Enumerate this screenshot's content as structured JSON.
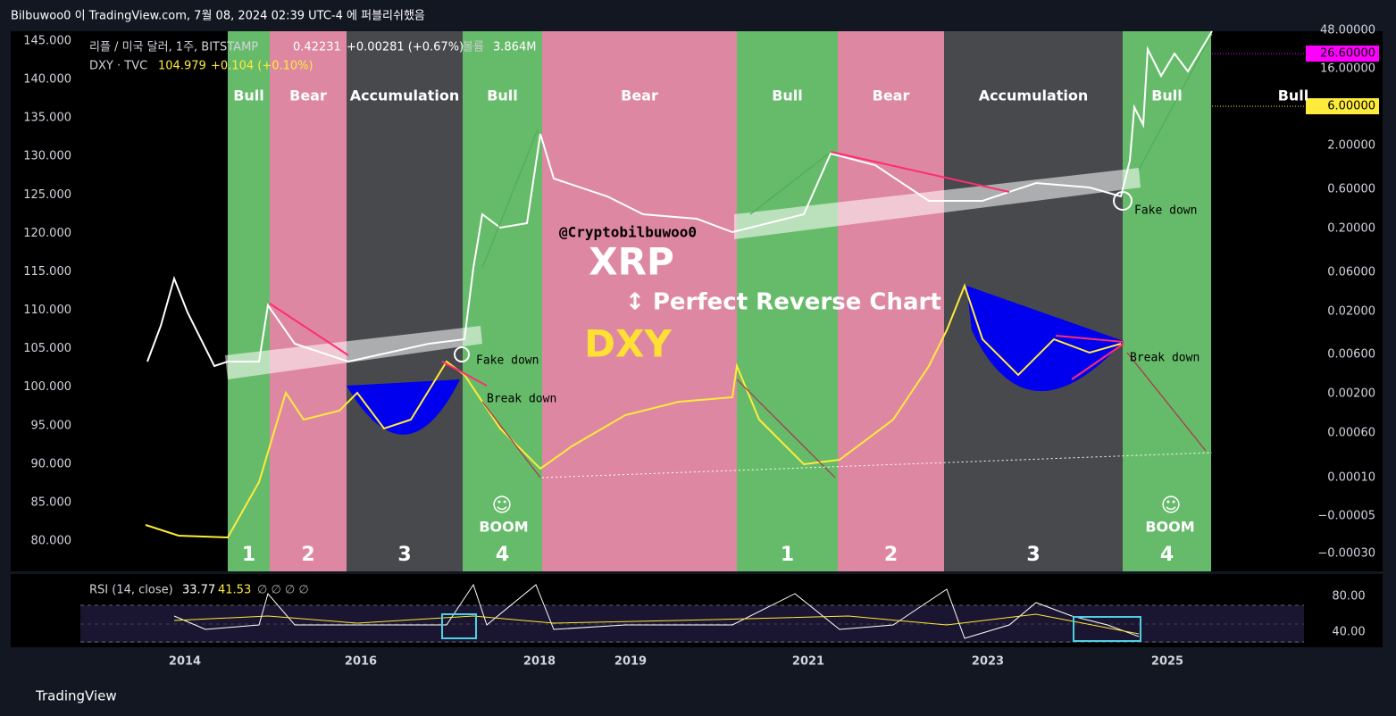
{
  "header": {
    "title": "Bilbuwoo0 이 TradingView.com, 7월 08, 2024 02:39 UTC-4 에 퍼블리쉬했음"
  },
  "legend": {
    "main": {
      "symbol": "리플 / 미국 달러, 1주, BITSTAMP",
      "price": "0.42231",
      "change": "+0.00281 (+0.67%)",
      "volume_label": "볼륨",
      "volume": "3.864M"
    },
    "dxy": {
      "symbol": "DXY · TVC",
      "price": "104.979",
      "change": "+0.104 (+0.10%)"
    }
  },
  "phases": [
    {
      "label": "Bull",
      "number": "1"
    },
    {
      "label": "Bear",
      "number": "2"
    },
    {
      "label": "Accumulation",
      "number": "3"
    },
    {
      "label": "Bull",
      "number": "4"
    },
    {
      "label": "Bear"
    },
    {
      "label": "Bull",
      "number": "1"
    },
    {
      "label": "Bear",
      "number": "2"
    },
    {
      "label": "Accumulation",
      "number": "3"
    },
    {
      "label": "Bull",
      "number": "4"
    }
  ],
  "right_label": "Bull",
  "left_axis": [
    "145.000",
    "140.000",
    "135.000",
    "130.000",
    "125.000",
    "120.000",
    "115.000",
    "110.000",
    "105.000",
    "100.000",
    "95.000",
    "90.000",
    "85.000",
    "80.000"
  ],
  "right_axis": [
    "48.00000",
    "16.00000",
    "2.00000",
    "0.60000",
    "0.20000",
    "0.06000",
    "0.02000",
    "0.00600",
    "0.00200",
    "0.00060",
    "0.00010",
    "−0.00005",
    "−0.00030"
  ],
  "price_tags": [
    "26.60000",
    "6.00000"
  ],
  "annotations": {
    "author": "@Cryptobilbuwoo0",
    "xrp": "XRP",
    "reverse": "↕ Perfect Reverse Chart",
    "dxy": "DXY",
    "fake_down_1": "Fake down",
    "fake_down_2": "Fake down",
    "break_down_1": "Break down",
    "break_down_2": "Break down",
    "smile_1": "☺",
    "boom_1": "BOOM",
    "smile_2": "☺",
    "boom_2": "BOOM"
  },
  "rsi": {
    "name": "RSI (14, close)",
    "value": "33.77",
    "ma": "41.53",
    "extras": "∅ ∅ ∅ ∅",
    "ticks": [
      "80.00",
      "40.00"
    ]
  },
  "x_axis": [
    "2014",
    "2016",
    "2018",
    "2019",
    "2021",
    "2023",
    "2025"
  ],
  "footer": {
    "brand": "TradingView"
  }
}
